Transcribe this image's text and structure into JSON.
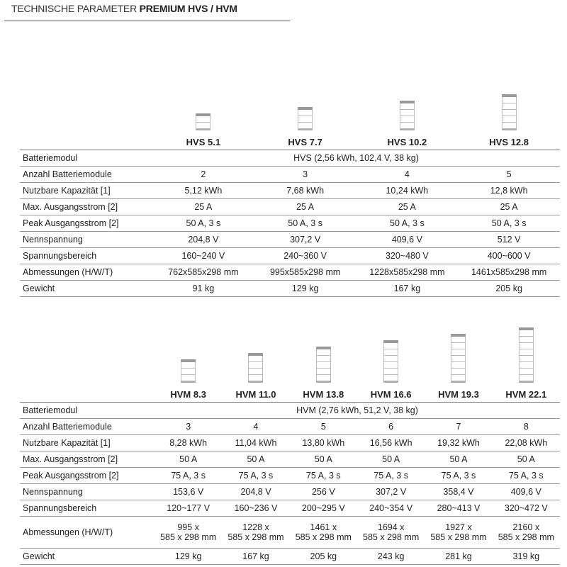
{
  "title": {
    "normal": "TECHNISCHE PARAMETER ",
    "bold": "PREMIUM HVS / HVM"
  },
  "colors": {
    "icon_cap": "#999999",
    "rule": "#999999"
  },
  "hvs": {
    "models": [
      {
        "name": "HVS 5.1",
        "modules": 2
      },
      {
        "name": "HVS 7.7",
        "modules": 3
      },
      {
        "name": "HVS 10.2",
        "modules": 4
      },
      {
        "name": "HVS 12.8",
        "modules": 5
      }
    ],
    "module_label": "Batteriemodul",
    "module_value": "HVS (2,56 kWh, 102,4 V, 38 kg)",
    "rows": [
      {
        "label": "Anzahl Batteriemodule",
        "values": [
          "2",
          "3",
          "4",
          "5"
        ]
      },
      {
        "label": "Nutzbare Kapazität [1]",
        "values": [
          "5,12 kWh",
          "7,68 kWh",
          "10,24 kWh",
          "12,8 kWh"
        ]
      },
      {
        "label": "Max. Ausgangsstrom [2]",
        "values": [
          "25 A",
          "25 A",
          "25 A",
          "25 A"
        ]
      },
      {
        "label": "Peak Ausgangsstrom [2]",
        "values": [
          "50 A, 3 s",
          "50 A, 3 s",
          "50 A, 3 s",
          "50 A, 3 s"
        ]
      },
      {
        "label": "Nennspannung",
        "values": [
          "204,8 V",
          "307,2 V",
          "409,6 V",
          "512 V"
        ]
      },
      {
        "label": "Spannungsbereich",
        "values": [
          "160~240 V",
          "240~360 V",
          "320~480 V",
          "400~600 V"
        ]
      },
      {
        "label": "Abmessungen (H/W/T)",
        "values": [
          "762x585x298 mm",
          "995x585x298 mm",
          "1228x585x298 mm",
          "1461x585x298 mm"
        ]
      },
      {
        "label": "Gewicht",
        "values": [
          "91 kg",
          "129 kg",
          "167 kg",
          "205 kg"
        ]
      }
    ]
  },
  "hvm": {
    "models": [
      {
        "name": "HVM 8.3",
        "modules": 3
      },
      {
        "name": "HVM 11.0",
        "modules": 4
      },
      {
        "name": "HVM 13.8",
        "modules": 5
      },
      {
        "name": "HVM 16.6",
        "modules": 6
      },
      {
        "name": "HVM 19.3",
        "modules": 7
      },
      {
        "name": "HVM 22.1",
        "modules": 8
      }
    ],
    "module_label": "Batteriemodul",
    "module_value": "HVM (2,76 kWh, 51,2 V, 38 kg)",
    "rows": [
      {
        "label": "Anzahl Batteriemodule",
        "values": [
          "3",
          "4",
          "5",
          "6",
          "7",
          "8"
        ]
      },
      {
        "label": "Nutzbare Kapazität [1]",
        "values": [
          "8,28 kWh",
          "11,04 kWh",
          "13,80 kWh",
          "16,56 kWh",
          "19,32 kWh",
          "22,08 kWh"
        ]
      },
      {
        "label": "Max. Ausgangsstrom [2]",
        "values": [
          "50 A",
          "50 A",
          "50 A",
          "50 A",
          "50 A",
          "50 A"
        ]
      },
      {
        "label": "Peak Ausgangsstrom [2]",
        "values": [
          "75 A, 3 s",
          "75 A, 3 s",
          "75 A, 3 s",
          "75 A, 3 s",
          "75 A, 3 s",
          "75 A, 3 s"
        ]
      },
      {
        "label": "Nennspannung",
        "values": [
          "153,6 V",
          "204,8 V",
          "256 V",
          "307,2 V",
          "358,4 V",
          "409,6 V"
        ]
      },
      {
        "label": "Spannungsbereich",
        "values": [
          "120~177 V",
          "160~236 V",
          "200~295 V",
          "240~354 V",
          "280~413 V",
          "320~472 V"
        ]
      },
      {
        "label": "Abmessungen (H/W/T)",
        "tall": true,
        "values": [
          "995 x\n585 x 298 mm",
          "1228 x\n585 x 298 mm",
          "1461 x\n585 x 298 mm",
          "1694 x\n585 x 298 mm",
          "1927 x\n585 x 298 mm",
          "2160 x\n585 x 298 mm"
        ]
      },
      {
        "label": "Gewicht",
        "values": [
          "129 kg",
          "167 kg",
          "205 kg",
          "243 kg",
          "281 kg",
          "319 kg"
        ]
      }
    ]
  }
}
